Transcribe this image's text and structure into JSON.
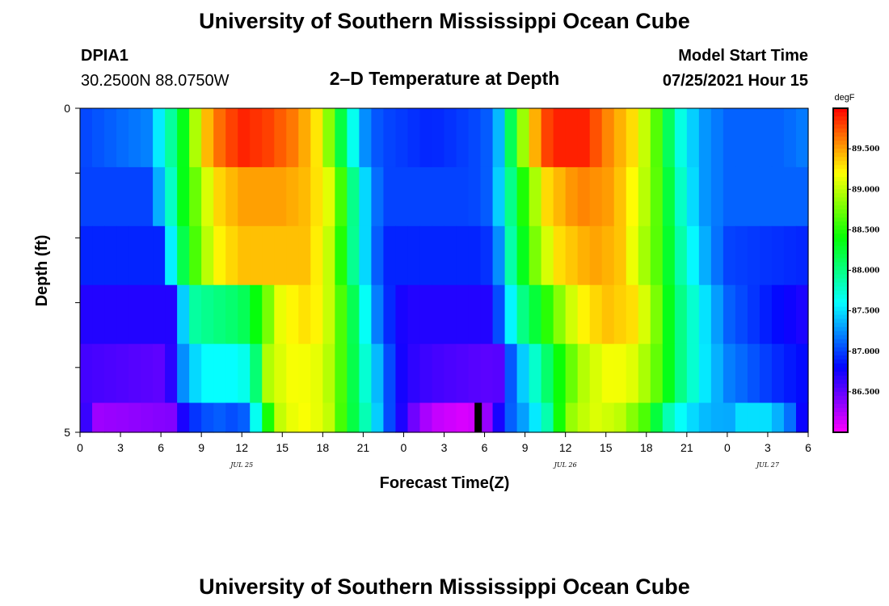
{
  "header": {
    "title": "University of Southern Mississippi Ocean Cube",
    "station": "DPIA1",
    "coords": "30.2500N  88.0750W",
    "subtitle": "2–D Temperature at Depth",
    "model_label": "Model Start Time",
    "model_time": "07/25/2021 Hour 15"
  },
  "footer": {
    "title": "University of Southern Mississippi Ocean Cube"
  },
  "chart_data": {
    "type": "heatmap",
    "title": "2–D Temperature at Depth",
    "xlabel": "Forecast Time(Z)",
    "ylabel": "Depth (ft)",
    "x_ticks": [
      "0",
      "3",
      "6",
      "9",
      "12",
      "15",
      "18",
      "21",
      "0",
      "3",
      "6",
      "9",
      "12",
      "15",
      "18",
      "21",
      "0",
      "3",
      "6"
    ],
    "date_labels": [
      {
        "label": "JUL 25",
        "hour": 12
      },
      {
        "label": "JUL 26",
        "hour": 36
      },
      {
        "label": "JUL 27",
        "hour": 51
      }
    ],
    "y_ticks": [
      "0",
      "5"
    ],
    "xlim": [
      0,
      54
    ],
    "ylim": [
      0,
      5
    ],
    "colorbar": {
      "unit": "degF",
      "min": 86.0,
      "max": 90.0,
      "tick_labels": [
        "89.500",
        "89.000",
        "88.500",
        "88.000",
        "87.500",
        "87.000",
        "86.500"
      ],
      "tick_values": [
        89.5,
        89.0,
        88.5,
        88.0,
        87.5,
        87.0,
        86.5
      ]
    },
    "marker": {
      "hour": 29.5,
      "depth_row": 4
    },
    "rows": [
      {
        "depth": "0-1",
        "keys": [
          [
            0,
            87.0
          ],
          [
            5,
            87.2
          ],
          [
            6.5,
            87.8
          ],
          [
            8,
            88.5
          ],
          [
            9,
            89.3
          ],
          [
            10.5,
            89.7
          ],
          [
            12,
            89.9
          ],
          [
            14,
            89.8
          ],
          [
            16,
            89.6
          ],
          [
            17.5,
            89.3
          ],
          [
            18.5,
            88.8
          ],
          [
            19.5,
            88.1
          ],
          [
            20.5,
            87.5
          ],
          [
            21.5,
            87.1
          ],
          [
            23,
            87.0
          ],
          [
            26,
            86.9
          ],
          [
            29,
            87.0
          ],
          [
            30.5,
            87.1
          ],
          [
            31.5,
            87.6
          ],
          [
            32,
            88.2
          ],
          [
            33,
            89.0
          ],
          [
            34,
            89.6
          ],
          [
            35,
            89.9
          ],
          [
            37.5,
            89.9
          ],
          [
            39,
            89.6
          ],
          [
            41,
            89.3
          ],
          [
            42.5,
            88.8
          ],
          [
            43.5,
            88.2
          ],
          [
            44.5,
            87.7
          ],
          [
            46,
            87.3
          ],
          [
            48,
            87.1
          ],
          [
            52,
            87.1
          ],
          [
            54,
            87.2
          ]
        ]
      },
      {
        "depth": "1-2",
        "keys": [
          [
            0,
            87.0
          ],
          [
            5,
            87.0
          ],
          [
            6.5,
            87.6
          ],
          [
            7.3,
            88.2
          ],
          [
            8.5,
            88.7
          ],
          [
            10,
            89.3
          ],
          [
            12,
            89.5
          ],
          [
            15,
            89.5
          ],
          [
            17,
            89.4
          ],
          [
            18.5,
            89.1
          ],
          [
            19.5,
            88.5
          ],
          [
            20.5,
            87.8
          ],
          [
            21.5,
            87.3
          ],
          [
            22.5,
            87.0
          ],
          [
            29,
            87.0
          ],
          [
            30.5,
            87.1
          ],
          [
            31.3,
            87.6
          ],
          [
            32.5,
            88.3
          ],
          [
            33.5,
            88.8
          ],
          [
            34.5,
            89.3
          ],
          [
            37,
            89.6
          ],
          [
            39.5,
            89.5
          ],
          [
            41,
            89.2
          ],
          [
            42.5,
            88.8
          ],
          [
            43.5,
            88.3
          ],
          [
            44.5,
            87.8
          ],
          [
            46,
            87.3
          ],
          [
            48,
            87.1
          ],
          [
            54,
            87.1
          ]
        ]
      },
      {
        "depth": "2-3",
        "keys": [
          [
            0,
            86.9
          ],
          [
            6,
            86.9
          ],
          [
            6.8,
            87.6
          ],
          [
            7.5,
            88.1
          ],
          [
            8.5,
            88.6
          ],
          [
            10,
            89.2
          ],
          [
            12,
            89.4
          ],
          [
            15,
            89.4
          ],
          [
            17,
            89.4
          ],
          [
            18.5,
            89.0
          ],
          [
            19.5,
            88.4
          ],
          [
            20.5,
            87.8
          ],
          [
            21.5,
            87.3
          ],
          [
            22.5,
            86.9
          ],
          [
            30,
            86.9
          ],
          [
            31,
            87.2
          ],
          [
            31.8,
            87.8
          ],
          [
            33,
            88.4
          ],
          [
            34,
            88.9
          ],
          [
            35.5,
            89.3
          ],
          [
            38,
            89.5
          ],
          [
            40,
            89.4
          ],
          [
            41.5,
            89.0
          ],
          [
            43,
            88.6
          ],
          [
            44,
            88.1
          ],
          [
            45,
            87.7
          ],
          [
            46.5,
            87.3
          ],
          [
            48,
            87.0
          ],
          [
            54,
            86.9
          ]
        ]
      },
      {
        "depth": "3-4",
        "keys": [
          [
            0,
            86.7
          ],
          [
            7,
            86.7
          ],
          [
            7.7,
            87.5
          ],
          [
            8.5,
            87.9
          ],
          [
            10,
            88.0
          ],
          [
            12,
            88.1
          ],
          [
            13.5,
            88.5
          ],
          [
            14.5,
            89.1
          ],
          [
            16.5,
            89.3
          ],
          [
            18,
            89.2
          ],
          [
            19,
            88.8
          ],
          [
            20,
            88.3
          ],
          [
            21,
            87.7
          ],
          [
            22,
            87.2
          ],
          [
            23,
            86.9
          ],
          [
            24,
            86.7
          ],
          [
            30.5,
            86.7
          ],
          [
            31.5,
            87.3
          ],
          [
            32.5,
            87.9
          ],
          [
            34,
            88.3
          ],
          [
            35.5,
            88.8
          ],
          [
            37,
            89.2
          ],
          [
            39,
            89.4
          ],
          [
            41,
            89.3
          ],
          [
            42.5,
            88.9
          ],
          [
            43.5,
            88.4
          ],
          [
            44.5,
            88.0
          ],
          [
            46,
            87.6
          ],
          [
            48,
            87.1
          ],
          [
            52,
            86.8
          ],
          [
            54,
            86.7
          ]
        ]
      },
      {
        "depth": "4-5",
        "keys": [
          [
            0,
            86.6
          ],
          [
            6.5,
            86.5
          ],
          [
            7.5,
            87.2
          ],
          [
            9,
            87.6
          ],
          [
            12,
            87.6
          ],
          [
            13,
            88.0
          ],
          [
            14,
            89.0
          ],
          [
            16,
            89.2
          ],
          [
            18,
            89.1
          ],
          [
            19,
            88.8
          ],
          [
            20,
            88.3
          ],
          [
            21,
            87.8
          ],
          [
            22,
            87.4
          ],
          [
            23,
            87.0
          ],
          [
            24,
            86.7
          ],
          [
            26,
            86.6
          ],
          [
            31,
            86.5
          ],
          [
            32,
            87.1
          ],
          [
            33,
            87.5
          ],
          [
            35,
            88.2
          ],
          [
            36,
            88.6
          ],
          [
            37.5,
            89.0
          ],
          [
            39.5,
            89.2
          ],
          [
            41,
            89.1
          ],
          [
            42.5,
            88.8
          ],
          [
            43.5,
            88.4
          ],
          [
            44.5,
            88.0
          ],
          [
            46,
            87.6
          ],
          [
            48,
            87.2
          ],
          [
            52,
            86.9
          ],
          [
            54,
            86.8
          ]
        ]
      },
      {
        "depth": "5",
        "keys": [
          [
            0,
            86.9
          ],
          [
            1,
            86.3
          ],
          [
            7,
            86.4
          ],
          [
            8,
            86.9
          ],
          [
            10,
            87.1
          ],
          [
            12,
            87.0
          ],
          [
            13,
            87.6
          ],
          [
            14,
            88.5
          ],
          [
            15,
            89.1
          ],
          [
            17,
            89.2
          ],
          [
            18.5,
            89.0
          ],
          [
            20,
            88.3
          ],
          [
            21.5,
            87.7
          ],
          [
            23,
            87.0
          ],
          [
            24.5,
            86.5
          ],
          [
            26,
            86.2
          ],
          [
            29,
            86.1
          ],
          [
            30.5,
            86.4
          ],
          [
            31.5,
            87.0
          ],
          [
            32.5,
            87.2
          ],
          [
            34,
            87.6
          ],
          [
            35,
            88.0
          ],
          [
            36,
            88.8
          ],
          [
            38,
            89.1
          ],
          [
            40,
            89.0
          ],
          [
            42,
            88.6
          ],
          [
            43,
            88.1
          ],
          [
            44,
            87.7
          ],
          [
            46,
            87.4
          ],
          [
            48,
            87.3
          ],
          [
            49,
            87.5
          ],
          [
            51,
            87.5
          ],
          [
            52.5,
            87.2
          ],
          [
            54,
            86.6
          ]
        ]
      }
    ]
  }
}
